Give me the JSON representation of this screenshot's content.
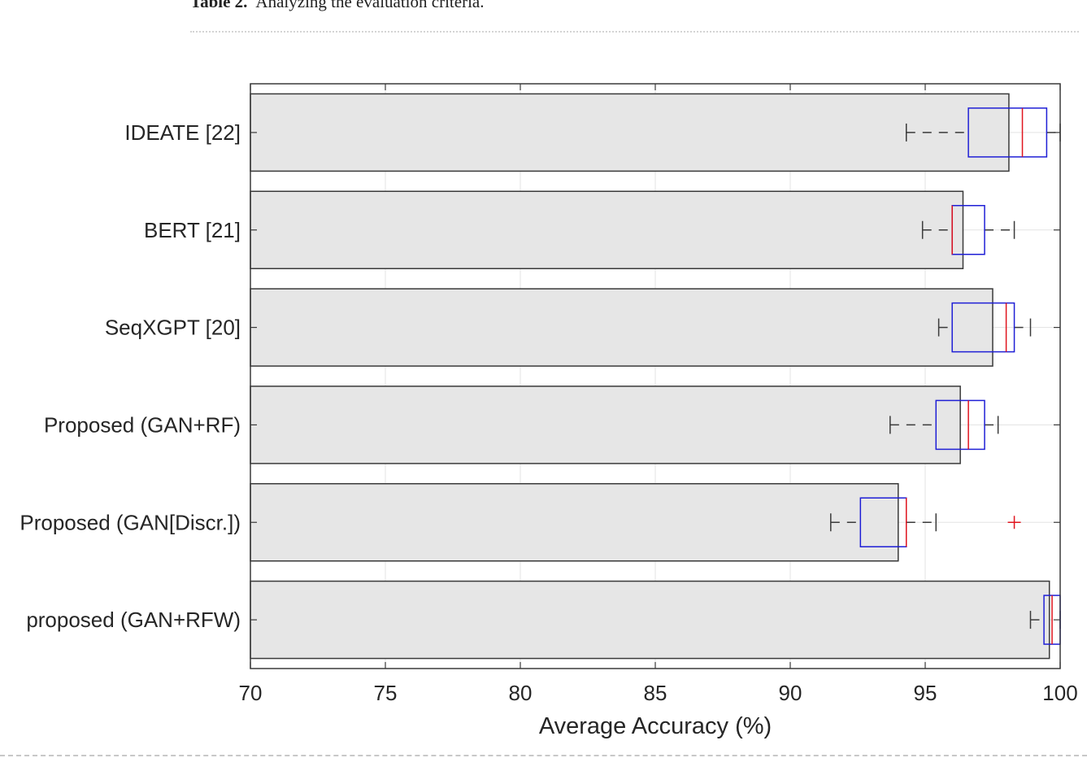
{
  "caption": {
    "label": "Table 2.",
    "text": "Analyzing the evaluation criteria."
  },
  "chart_data": {
    "type": "bar",
    "orientation": "horizontal",
    "title": "",
    "xlabel": "Average Accuracy (%)",
    "ylabel": "",
    "xlim": [
      70,
      100
    ],
    "xticks": [
      70,
      75,
      80,
      85,
      90,
      95,
      100
    ],
    "grid": true,
    "categories": [
      "IDEATE [22]",
      "BERT [21]",
      "SeqXGPT [20]",
      "Proposed (GAN+RF)",
      "Proposed (GAN[Discr.])",
      "proposed (GAN+RFW)"
    ],
    "values": [
      98.1,
      96.4,
      97.5,
      96.3,
      94.0,
      99.6
    ],
    "boxplots": [
      {
        "whisker_low": 94.3,
        "q1": 96.6,
        "median": 98.6,
        "q3": 99.5,
        "whisker_high": 100.0,
        "outliers": []
      },
      {
        "whisker_low": 94.9,
        "q1": 96.0,
        "median": 96.0,
        "q3": 97.2,
        "whisker_high": 98.3,
        "outliers": []
      },
      {
        "whisker_low": 95.5,
        "q1": 96.0,
        "median": 98.0,
        "q3": 98.3,
        "whisker_high": 98.9,
        "outliers": []
      },
      {
        "whisker_low": 93.7,
        "q1": 95.4,
        "median": 96.6,
        "q3": 97.2,
        "whisker_high": 97.7,
        "outliers": []
      },
      {
        "whisker_low": 91.5,
        "q1": 92.6,
        "median": 94.3,
        "q3": 94.3,
        "whisker_high": 95.4,
        "outliers": [
          98.3
        ]
      },
      {
        "whisker_low": 98.9,
        "q1": 99.4,
        "median": 99.7,
        "q3": 100.0,
        "whisker_high": 100.0,
        "outliers": []
      }
    ],
    "colors": {
      "bar_fill": "#e6e6e6",
      "bar_stroke": "#3a3a3a",
      "box": "#1f1fd6",
      "median": "#e0141e",
      "whisker": "#3a3a3a",
      "outlier": "#e0141e",
      "grid": "#e3e3e3"
    }
  }
}
